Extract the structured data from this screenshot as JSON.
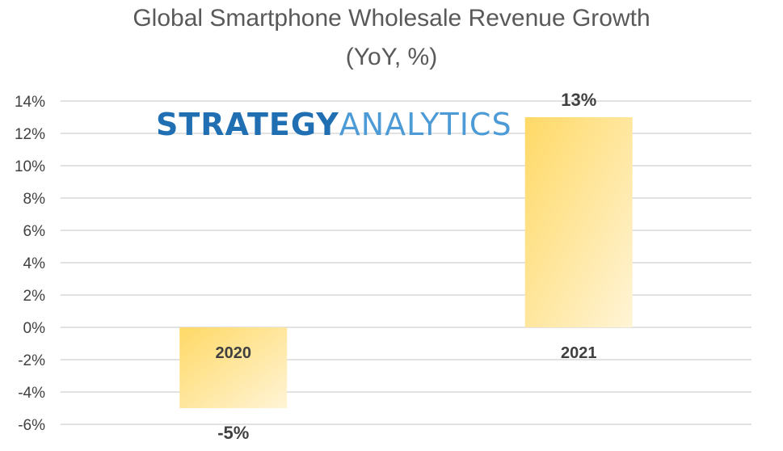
{
  "chart_data": {
    "type": "bar",
    "title": "Global Smartphone Wholesale Revenue Growth",
    "subtitle": "(YoY, %)",
    "categories": [
      "2020",
      "2021"
    ],
    "values": [
      -5,
      13
    ],
    "data_labels": [
      "-5%",
      "13%"
    ],
    "y_ticks": [
      "14%",
      "12%",
      "10%",
      "8%",
      "6%",
      "4%",
      "2%",
      "0%",
      "-2%",
      "-4%",
      "-6%"
    ],
    "ylim": [
      -6,
      14
    ],
    "grid": true,
    "legend": "none",
    "bar_color_light": "#fff4d6",
    "bar_color_dark": "#ffd966"
  },
  "watermark": {
    "part1": "STRATEGY",
    "part2": "ANALYTICS"
  },
  "colors": {
    "title": "#595959",
    "axis_text": "#404040",
    "gridline": "#d9d9d9",
    "logo_dark": "#1f6fb2",
    "logo_light": "#4d9bd6"
  }
}
